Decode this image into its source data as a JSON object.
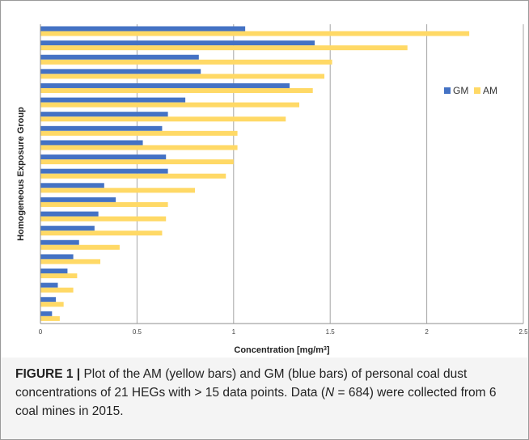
{
  "chart_data": {
    "type": "bar",
    "orientation": "horizontal",
    "xlabel": "Concentration [mg/m",
    "xlabel_sup": "3",
    "xlabel_suffix": "]",
    "ylabel": "Homogeneous Exposure Group",
    "xlim": [
      0,
      2.5
    ],
    "x_ticks": [
      "0",
      "0.5",
      "1",
      "1.5",
      "2",
      "2.5"
    ],
    "x_tick_values": [
      0,
      0.5,
      1,
      1.5,
      2,
      2.5
    ],
    "grid": "vertical",
    "legend_position": "right",
    "series": [
      {
        "name": "GM",
        "color": "#4472C4",
        "values": [
          1.06,
          1.42,
          0.82,
          0.83,
          1.29,
          0.75,
          0.66,
          0.63,
          0.53,
          0.65,
          0.66,
          0.33,
          0.39,
          0.3,
          0.28,
          0.2,
          0.17,
          0.14,
          0.09,
          0.08,
          0.06
        ]
      },
      {
        "name": "AM",
        "color": "#FFD966",
        "values": [
          2.22,
          1.9,
          1.51,
          1.47,
          1.41,
          1.34,
          1.27,
          1.02,
          1.02,
          1.0,
          0.96,
          0.8,
          0.66,
          0.65,
          0.63,
          0.41,
          0.31,
          0.19,
          0.17,
          0.12,
          0.1
        ]
      }
    ]
  },
  "caption": {
    "label": "FIGURE 1 |",
    "text_1": " Plot of the AM (yellow bars) and GM (blue bars) of personal coal dust concentrations of 21 HEGs with > 15 data points. Data (",
    "n_symbol": "N",
    "text_2": " = 684) were collected from 6 coal mines in 2015."
  }
}
